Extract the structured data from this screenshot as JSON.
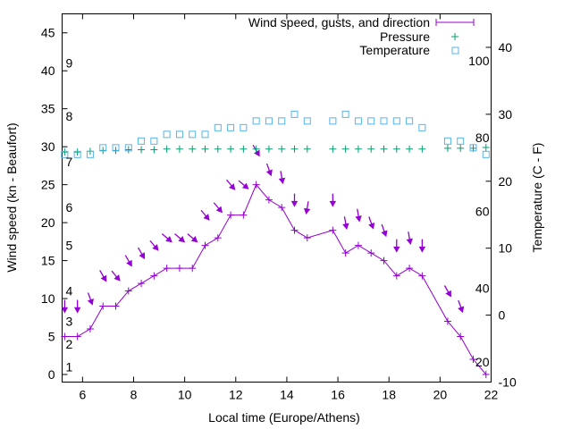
{
  "colors": {
    "wind": "#9400d3",
    "pressure": "#009e73",
    "temperature": "#56b4e9",
    "axis": "#000000"
  },
  "chart_data": {
    "type": "line",
    "title": "",
    "xlabel": "Local time (Europe/Athens)",
    "ylabel": "Wind speed (kn - Beaufort)",
    "y2label": "Temperature (C - F)",
    "xlim": [
      5.2,
      22
    ],
    "ylim": [
      -1,
      47.5
    ],
    "y2lim": [
      -10,
      45
    ],
    "x_ticks": [
      "6",
      "8",
      "10",
      "12",
      "14",
      "16",
      "18",
      "20",
      "22"
    ],
    "y_ticks": [
      "0",
      "5",
      "10",
      "15",
      "20",
      "25",
      "30",
      "35",
      "40",
      "45"
    ],
    "y2_ticks": [
      "-10",
      "0",
      "10",
      "20",
      "30",
      "40"
    ],
    "beaufort_labels": [
      {
        "text": "1",
        "y": 1
      },
      {
        "text": "2",
        "y": 4
      },
      {
        "text": "3",
        "y": 7
      },
      {
        "text": "4",
        "y": 11
      },
      {
        "text": "5",
        "y": 17
      },
      {
        "text": "6",
        "y": 22
      },
      {
        "text": "7",
        "y": 28
      },
      {
        "text": "8",
        "y": 34
      },
      {
        "text": "9",
        "y": 41
      }
    ],
    "fahrenheit_labels": [
      {
        "text": "20",
        "y2": -7
      },
      {
        "text": "40",
        "y2": 4
      },
      {
        "text": "60",
        "y2": 15.5
      },
      {
        "text": "80",
        "y2": 26.5
      },
      {
        "text": "100",
        "y2": 38
      }
    ],
    "legend": [
      "Wind speed, gusts, and direction",
      "Pressure",
      "Temperature"
    ],
    "legend_position": "top-right",
    "series": [
      {
        "name": "Wind speed, gusts, and direction",
        "axis": "y1",
        "x": [
          5.3,
          5.8,
          6.3,
          6.8,
          7.3,
          7.8,
          8.3,
          8.8,
          9.3,
          9.8,
          10.3,
          10.8,
          11.3,
          11.8,
          12.3,
          12.8,
          13.3,
          13.8,
          14.3,
          14.8,
          15.8,
          16.3,
          16.8,
          17.3,
          17.8,
          18.3,
          18.8,
          19.3,
          20.3,
          20.8,
          21.3,
          21.8
        ],
        "y": [
          5,
          5,
          6,
          9,
          9,
          11,
          12,
          13,
          14,
          14,
          14,
          17,
          18,
          21,
          21,
          25,
          23,
          22,
          19,
          18,
          19,
          16,
          17,
          16,
          15,
          13,
          14,
          13,
          7,
          5,
          2,
          0
        ],
        "gust_x": [
          5.3,
          5.8,
          6.3,
          6.8,
          7.3,
          7.8,
          8.3,
          8.8,
          9.3,
          9.8,
          10.3,
          10.8,
          11.3,
          11.8,
          12.3,
          12.8,
          13.3,
          13.8,
          14.3,
          14.8,
          15.8,
          16.3,
          16.8,
          17.3,
          17.8,
          18.3,
          18.8,
          19.3,
          20.3,
          20.8
        ],
        "gust_y": [
          9,
          9,
          10,
          13,
          13,
          15,
          16,
          17,
          18,
          18,
          18,
          21,
          22,
          25,
          25,
          29.5,
          27,
          26,
          23,
          22,
          23,
          20,
          21,
          20,
          19,
          17,
          18,
          17,
          11,
          9
        ],
        "direction_deg": [
          180,
          180,
          200,
          210,
          220,
          210,
          210,
          220,
          230,
          230,
          230,
          220,
          220,
          220,
          230,
          210,
          200,
          190,
          180,
          170,
          180,
          190,
          190,
          200,
          200,
          180,
          190,
          180,
          210,
          200
        ]
      },
      {
        "name": "Pressure",
        "axis": "y1",
        "x": [
          5.3,
          5.8,
          6.3,
          6.8,
          7.3,
          7.8,
          8.3,
          8.8,
          9.3,
          9.8,
          10.3,
          10.8,
          11.3,
          11.8,
          12.3,
          12.8,
          13.3,
          13.8,
          14.3,
          14.8,
          15.8,
          16.3,
          16.8,
          17.3,
          17.8,
          18.3,
          18.8,
          19.3,
          20.3,
          20.8,
          21.3,
          21.8
        ],
        "y": [
          29.3,
          29.3,
          29.4,
          29.5,
          29.5,
          29.6,
          29.6,
          29.6,
          29.7,
          29.7,
          29.7,
          29.7,
          29.7,
          29.7,
          29.7,
          29.7,
          29.7,
          29.7,
          29.7,
          29.7,
          29.7,
          29.7,
          29.7,
          29.7,
          29.7,
          29.7,
          29.7,
          29.7,
          29.8,
          29.8,
          29.8,
          29.9
        ]
      },
      {
        "name": "Temperature",
        "axis": "y2",
        "x": [
          5.3,
          5.8,
          6.3,
          6.8,
          7.3,
          7.8,
          8.3,
          8.8,
          9.3,
          9.8,
          10.3,
          10.8,
          11.3,
          11.8,
          12.3,
          12.8,
          13.3,
          13.8,
          14.3,
          14.8,
          15.8,
          16.3,
          16.8,
          17.3,
          17.8,
          18.3,
          18.8,
          19.3,
          20.3,
          20.8,
          21.3,
          21.8
        ],
        "y": [
          24,
          24,
          24,
          25,
          25,
          25,
          26,
          26,
          27,
          27,
          27,
          27,
          28,
          28,
          28,
          29,
          29,
          29,
          30,
          29,
          29,
          30,
          29,
          29,
          29,
          29,
          29,
          28,
          26,
          26,
          25,
          24
        ]
      }
    ]
  }
}
